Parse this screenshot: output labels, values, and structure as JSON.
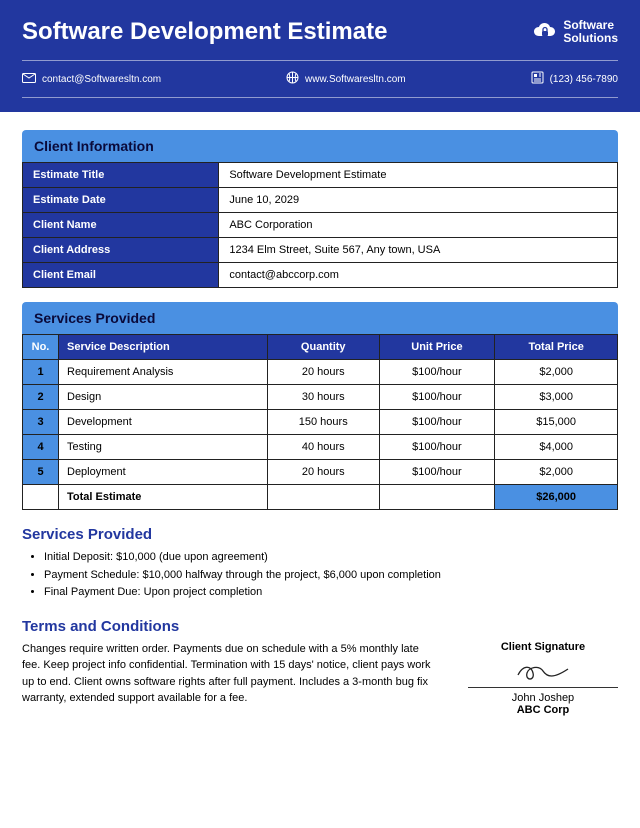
{
  "header": {
    "title": "Software Development Estimate",
    "company_line1": "Software",
    "company_line2": "Solutions",
    "email": "contact@Softwaresltn.com",
    "website": "www.Softwaresltn.com",
    "phone": "(123) 456-7890"
  },
  "colors": {
    "primary": "#22379f",
    "accent": "#4a90e2",
    "text_dark": "#0a0a3a"
  },
  "client_section": {
    "heading": "Client Information",
    "rows": [
      {
        "label": "Estimate Title",
        "value": "Software Development Estimate"
      },
      {
        "label": "Estimate Date",
        "value": "June 10, 2029"
      },
      {
        "label": "Client Name",
        "value": "ABC Corporation"
      },
      {
        "label": "Client Address",
        "value": "1234 Elm Street, Suite 567, Any town, USA"
      },
      {
        "label": "Client Email",
        "value": "contact@abccorp.com"
      }
    ]
  },
  "services_section": {
    "heading": "Services Provided",
    "columns": {
      "no": "No.",
      "desc": "Service Description",
      "qty": "Quantity",
      "unit": "Unit Price",
      "total": "Total Price"
    },
    "rows": [
      {
        "no": "1",
        "desc": "Requirement Analysis",
        "qty": "20 hours",
        "unit": "$100/hour",
        "total": "$2,000"
      },
      {
        "no": "2",
        "desc": "Design",
        "qty": "30 hours",
        "unit": "$100/hour",
        "total": "$3,000"
      },
      {
        "no": "3",
        "desc": "Development",
        "qty": "150 hours",
        "unit": "$100/hour",
        "total": "$15,000"
      },
      {
        "no": "4",
        "desc": "Testing",
        "qty": "40 hours",
        "unit": "$100/hour",
        "total": "$4,000"
      },
      {
        "no": "5",
        "desc": "Deployment",
        "qty": "20 hours",
        "unit": "$100/hour",
        "total": "$2,000"
      }
    ],
    "total_label": "Total Estimate",
    "total_value": "$26,000"
  },
  "payments": {
    "heading": "Services Provided",
    "items": [
      "Initial Deposit: $10,000 (due upon agreement)",
      "Payment Schedule: $10,000 halfway through the project, $6,000 upon completion",
      "Final Payment Due: Upon project completion"
    ]
  },
  "terms": {
    "heading": "Terms and Conditions",
    "text": "Changes require written order. Payments due on schedule with a 5% monthly late fee. Keep project info confidential. Termination with 15 days' notice, client pays work up to end. Client owns software rights after full payment. Includes a 3-month bug fix warranty, extended support available for a fee."
  },
  "signature": {
    "label": "Client Signature",
    "name": "John Joshep",
    "company": "ABC Corp"
  }
}
